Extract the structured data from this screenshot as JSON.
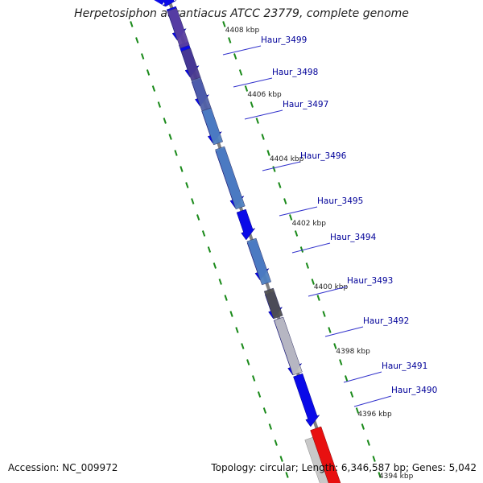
{
  "title": "Herpetosiphon aurantiacus ATCC 23779, complete genome",
  "footer": {
    "accession": "Accession: NC_009972",
    "summary": "Topology: circular; Length: 6,346,587 bp; Genes: 5,042"
  },
  "colors": {
    "backbone": "#808080",
    "tick": "#1a8a1a",
    "gene_blue": "#0a0ae8",
    "gene_red": "#e81010",
    "label": "#000099",
    "tick_label": "#222222"
  },
  "scale_labels": [
    "4408 kbp",
    "4406 kbp",
    "4404 kbp",
    "4402 kbp",
    "4400 kbp",
    "4398 kbp",
    "4396 kbp",
    "4394 kbp"
  ],
  "gene_labels": [
    "Haur_3499",
    "Haur_3498",
    "Haur_3497",
    "Haur_3496",
    "Haur_3495",
    "Haur_3494",
    "Haur_3493",
    "Haur_3492",
    "Haur_3491",
    "Haur_3490"
  ],
  "tracks": {
    "forward_genes_strand": "blue arrows pointing inward along the backbone",
    "similarity_track_colors": [
      "#5a3fa0",
      "#4f80c0",
      "#505050",
      "#c0c0c0"
    ]
  }
}
